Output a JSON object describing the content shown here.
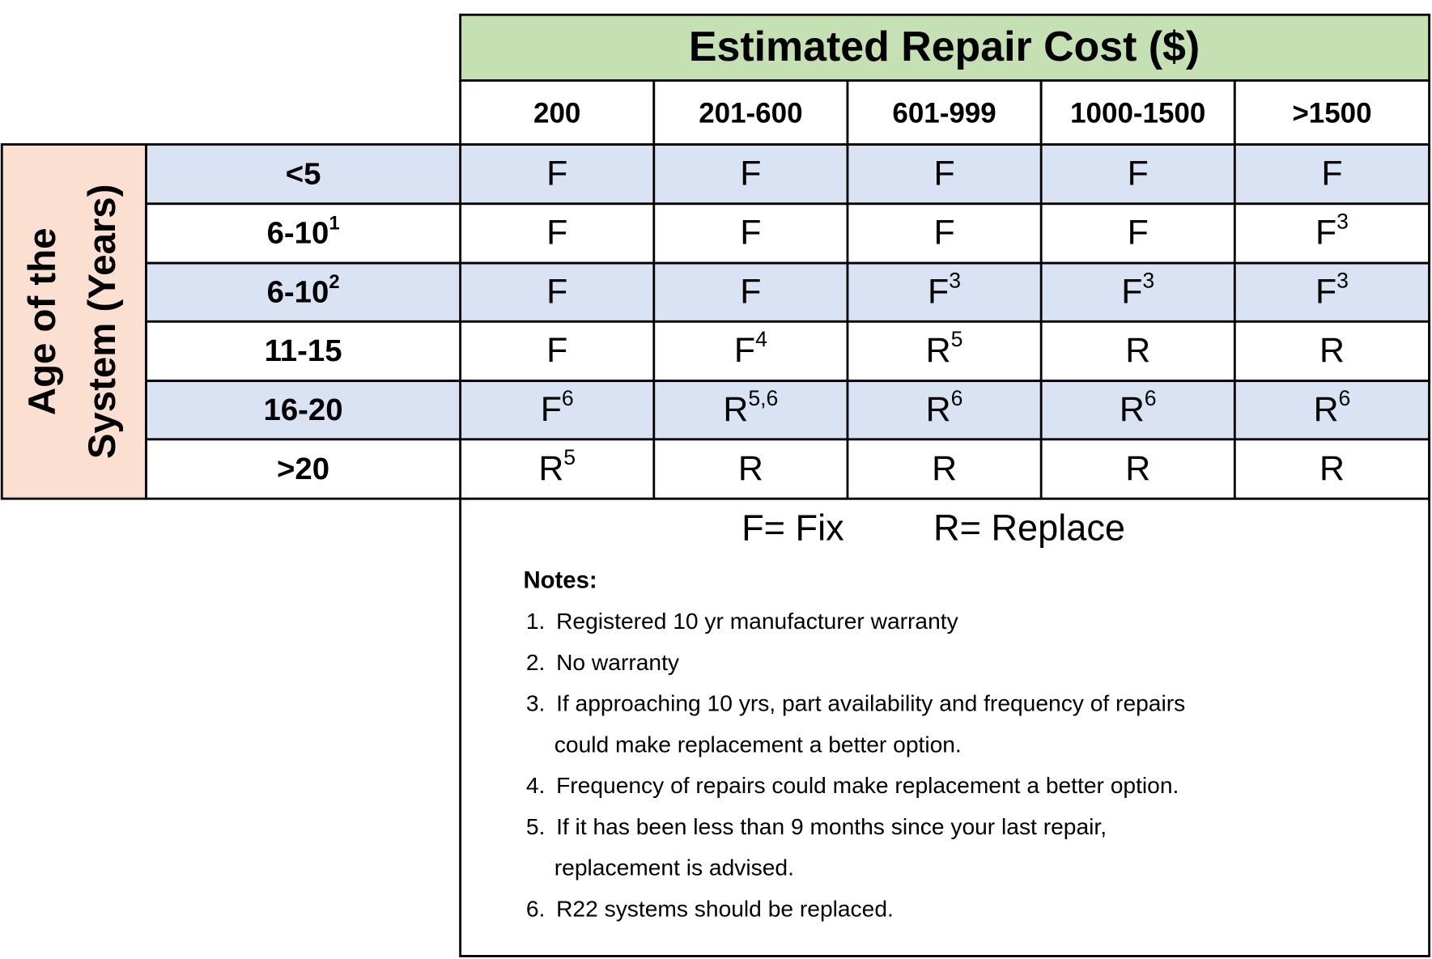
{
  "header": {
    "title": "Estimated Repair Cost ($)",
    "columns": [
      "200",
      "201-600",
      "601-999",
      "1000-1500",
      ">1500"
    ]
  },
  "row_header_label": [
    "Age of the",
    "System (Years)"
  ],
  "rows": [
    {
      "label": "<5",
      "cells": [
        "F",
        "F",
        "F",
        "F",
        "F"
      ]
    },
    {
      "label": {
        "text": "6-10",
        "sup": "1"
      },
      "cells": [
        "F",
        "F",
        "F",
        "F",
        {
          "text": "F",
          "sup": "3"
        }
      ]
    },
    {
      "label": {
        "text": "6-10",
        "sup": "2"
      },
      "cells": [
        "F",
        "F",
        {
          "text": "F",
          "sup": "3"
        },
        {
          "text": "F",
          "sup": "3"
        },
        {
          "text": "F",
          "sup": "3"
        }
      ]
    },
    {
      "label": "11-15",
      "cells": [
        "F",
        {
          "text": "F",
          "sup": "4"
        },
        {
          "text": "R",
          "sup": "5"
        },
        "R",
        "R"
      ]
    },
    {
      "label": "16-20",
      "cells": [
        {
          "text": "F",
          "sup": "6"
        },
        {
          "text": "R",
          "sup": "5,6"
        },
        {
          "text": "R",
          "sup": "6"
        },
        {
          "text": "R",
          "sup": "6"
        },
        {
          "text": "R",
          "sup": "6"
        }
      ]
    },
    {
      "label": ">20",
      "cells": [
        {
          "text": "R",
          "sup": "5"
        },
        "R",
        "R",
        "R",
        "R"
      ]
    }
  ],
  "legend": [
    "F= Fix",
    "R= Replace"
  ],
  "notes": {
    "title": "Notes:",
    "items": [
      {
        "number": "1.",
        "lines": [
          "Registered 10 yr manufacturer warranty"
        ]
      },
      {
        "number": "2.",
        "lines": [
          "No warranty"
        ]
      },
      {
        "number": "3.",
        "lines": [
          "If approaching 10 yrs, part availability and frequency of repairs",
          "could make replacement a better option."
        ]
      },
      {
        "number": "4.",
        "lines": [
          "Frequency of repairs could make replacement a better option."
        ]
      },
      {
        "number": "5.",
        "lines": [
          "If it has been less than 9 months since your last repair,",
          "replacement is advised."
        ]
      },
      {
        "number": "6.",
        "lines": [
          "R22 systems should be replaced."
        ]
      }
    ]
  }
}
